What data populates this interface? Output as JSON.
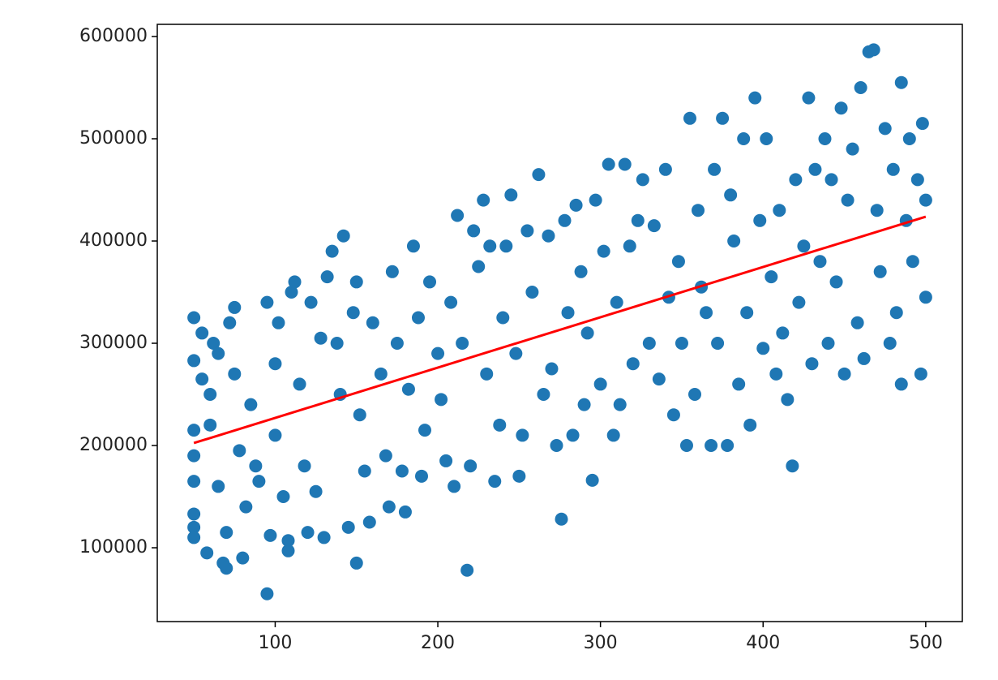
{
  "chart_data": {
    "type": "scatter",
    "xlim": [
      27.5,
      522.5
    ],
    "ylim": [
      27800,
      611900
    ],
    "xticks": [
      100,
      200,
      300,
      400,
      500
    ],
    "yticks": [
      100000,
      200000,
      300000,
      400000,
      500000,
      600000
    ],
    "grid": false,
    "series": [
      {
        "color": "#1f77b4",
        "x": [
          50,
          50,
          50,
          50,
          50,
          50,
          50,
          50,
          55,
          55,
          58,
          60,
          60,
          62,
          65,
          65,
          68,
          70,
          70,
          72,
          75,
          75,
          78,
          80,
          82,
          85,
          88,
          90,
          95,
          95,
          97,
          100,
          100,
          102,
          105,
          108,
          108,
          110,
          112,
          115,
          118,
          120,
          122,
          125,
          128,
          130,
          132,
          135,
          138,
          140,
          142,
          145,
          148,
          150,
          150,
          152,
          155,
          158,
          160,
          165,
          168,
          170,
          172,
          175,
          178,
          180,
          182,
          185,
          188,
          190,
          192,
          195,
          200,
          202,
          205,
          208,
          210,
          212,
          215,
          218,
          220,
          222,
          225,
          228,
          230,
          232,
          235,
          238,
          240,
          242,
          245,
          248,
          250,
          252,
          255,
          258,
          262,
          265,
          268,
          270,
          273,
          276,
          278,
          280,
          283,
          285,
          288,
          290,
          292,
          295,
          297,
          300,
          302,
          305,
          308,
          310,
          312,
          315,
          318,
          320,
          323,
          326,
          330,
          333,
          336,
          340,
          342,
          345,
          348,
          350,
          353,
          355,
          358,
          360,
          362,
          365,
          368,
          370,
          372,
          375,
          378,
          380,
          382,
          385,
          388,
          390,
          392,
          395,
          398,
          400,
          402,
          405,
          408,
          410,
          412,
          415,
          418,
          420,
          422,
          425,
          428,
          430,
          432,
          435,
          438,
          440,
          442,
          445,
          448,
          450,
          452,
          455,
          458,
          460,
          462,
          465,
          468,
          470,
          472,
          475,
          478,
          480,
          482,
          485,
          485,
          488,
          490,
          492,
          495,
          497,
          498,
          500,
          500
        ],
        "values": [
          325000,
          283000,
          215000,
          190000,
          165000,
          133000,
          120000,
          110000,
          310000,
          265000,
          95000,
          250000,
          220000,
          300000,
          290000,
          160000,
          85000,
          80000,
          115000,
          320000,
          335000,
          270000,
          195000,
          90000,
          140000,
          240000,
          180000,
          165000,
          55000,
          340000,
          112000,
          280000,
          210000,
          320000,
          150000,
          107000,
          97000,
          350000,
          360000,
          260000,
          180000,
          115000,
          340000,
          155000,
          305000,
          110000,
          365000,
          390000,
          300000,
          250000,
          405000,
          120000,
          330000,
          85000,
          360000,
          230000,
          175000,
          125000,
          320000,
          270000,
          190000,
          140000,
          370000,
          300000,
          175000,
          135000,
          255000,
          395000,
          325000,
          170000,
          215000,
          360000,
          290000,
          245000,
          185000,
          340000,
          160000,
          425000,
          300000,
          78000,
          180000,
          410000,
          375000,
          440000,
          270000,
          395000,
          165000,
          220000,
          325000,
          395000,
          445000,
          290000,
          170000,
          210000,
          410000,
          350000,
          465000,
          250000,
          405000,
          275000,
          200000,
          128000,
          420000,
          330000,
          210000,
          435000,
          370000,
          240000,
          310000,
          166000,
          440000,
          260000,
          390000,
          475000,
          210000,
          340000,
          240000,
          475000,
          395000,
          280000,
          420000,
          460000,
          300000,
          415000,
          265000,
          470000,
          345000,
          230000,
          380000,
          300000,
          200000,
          520000,
          250000,
          430000,
          355000,
          330000,
          200000,
          470000,
          300000,
          520000,
          200000,
          445000,
          400000,
          260000,
          500000,
          330000,
          220000,
          540000,
          420000,
          295000,
          500000,
          365000,
          270000,
          430000,
          310000,
          245000,
          180000,
          460000,
          340000,
          395000,
          540000,
          280000,
          470000,
          380000,
          500000,
          300000,
          460000,
          360000,
          530000,
          270000,
          440000,
          490000,
          320000,
          550000,
          285000,
          585000,
          587000,
          430000,
          370000,
          510000,
          300000,
          470000,
          330000,
          555000,
          260000,
          420000,
          500000,
          380000,
          460000,
          270000,
          515000,
          345000,
          440000
        ]
      }
    ],
    "fit": {
      "color": "#ff0000",
      "x": [
        50,
        500
      ],
      "values": [
        202400,
        423800
      ]
    }
  }
}
